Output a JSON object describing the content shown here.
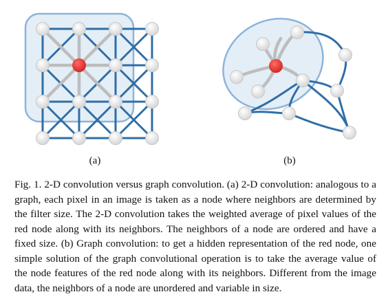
{
  "figure": {
    "panel_a_label": "(a)",
    "panel_b_label": "(b)",
    "colors": {
      "edge_blue": "#2f6ea6",
      "edge_gray": "#bdbdbd",
      "node_white": "#f2f2f2",
      "node_red": "#e8302f",
      "region_fill": "#dbe8f4",
      "region_stroke": "#8cb4da"
    }
  },
  "caption": {
    "text": "Fig. 1.    2-D convolution versus graph convolution. (a) 2-D convolution: analogous to a graph, each pixel in an image is taken as a node where neighbors are determined by the filter size. The 2-D convolution takes the weighted average of pixel values of the red node along with its neighbors. The neighbors of a node are ordered and have a fixed size. (b) Graph convolution: to get a hidden representation of the red node, one simple solution of the graph convolutional operation is to take the average value of the node features of the red node along with its neighbors. Different from the image data, the neighbors of a node are unordered and variable in size."
  }
}
